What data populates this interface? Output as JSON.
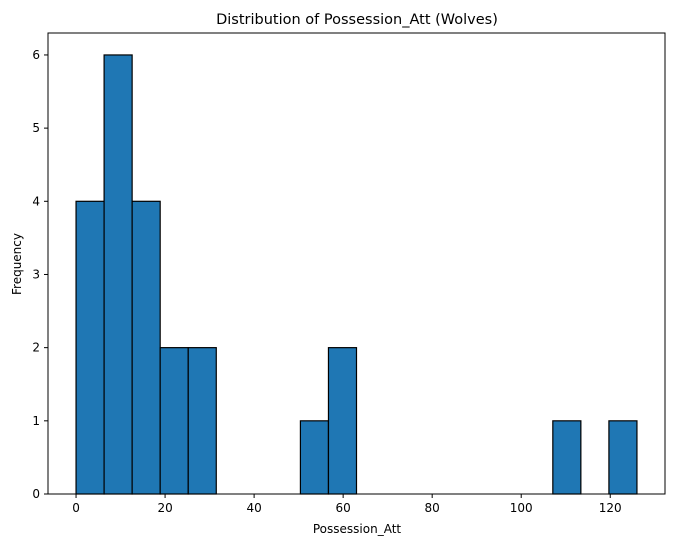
{
  "chart_data": {
    "type": "bar",
    "title": "Distribution of Possession_Att (Wolves)",
    "xlabel": "Possession_Att",
    "ylabel": "Frequency",
    "bar_color": "#1f77b4",
    "edge_color": "#000000",
    "xlim": [
      -6.3,
      132.3
    ],
    "ylim": [
      0,
      6.3
    ],
    "xticks": [
      0,
      20,
      40,
      60,
      80,
      100,
      120
    ],
    "yticks": [
      0,
      1,
      2,
      3,
      4,
      5,
      6
    ],
    "bins": [
      {
        "start": 0.0,
        "end": 6.3,
        "count": 4
      },
      {
        "start": 6.3,
        "end": 12.6,
        "count": 6
      },
      {
        "start": 12.6,
        "end": 18.9,
        "count": 4
      },
      {
        "start": 18.9,
        "end": 25.2,
        "count": 2
      },
      {
        "start": 25.2,
        "end": 31.5,
        "count": 2
      },
      {
        "start": 31.5,
        "end": 37.8,
        "count": 0
      },
      {
        "start": 37.8,
        "end": 44.1,
        "count": 0
      },
      {
        "start": 44.1,
        "end": 50.4,
        "count": 0
      },
      {
        "start": 50.4,
        "end": 56.7,
        "count": 1
      },
      {
        "start": 56.7,
        "end": 63.0,
        "count": 2
      },
      {
        "start": 63.0,
        "end": 69.3,
        "count": 0
      },
      {
        "start": 69.3,
        "end": 75.6,
        "count": 0
      },
      {
        "start": 75.6,
        "end": 81.9,
        "count": 0
      },
      {
        "start": 81.9,
        "end": 88.2,
        "count": 0
      },
      {
        "start": 88.2,
        "end": 94.5,
        "count": 0
      },
      {
        "start": 94.5,
        "end": 100.8,
        "count": 0
      },
      {
        "start": 100.8,
        "end": 107.1,
        "count": 0
      },
      {
        "start": 107.1,
        "end": 113.4,
        "count": 1
      },
      {
        "start": 113.4,
        "end": 119.7,
        "count": 0
      },
      {
        "start": 119.7,
        "end": 126.0,
        "count": 1
      }
    ]
  }
}
